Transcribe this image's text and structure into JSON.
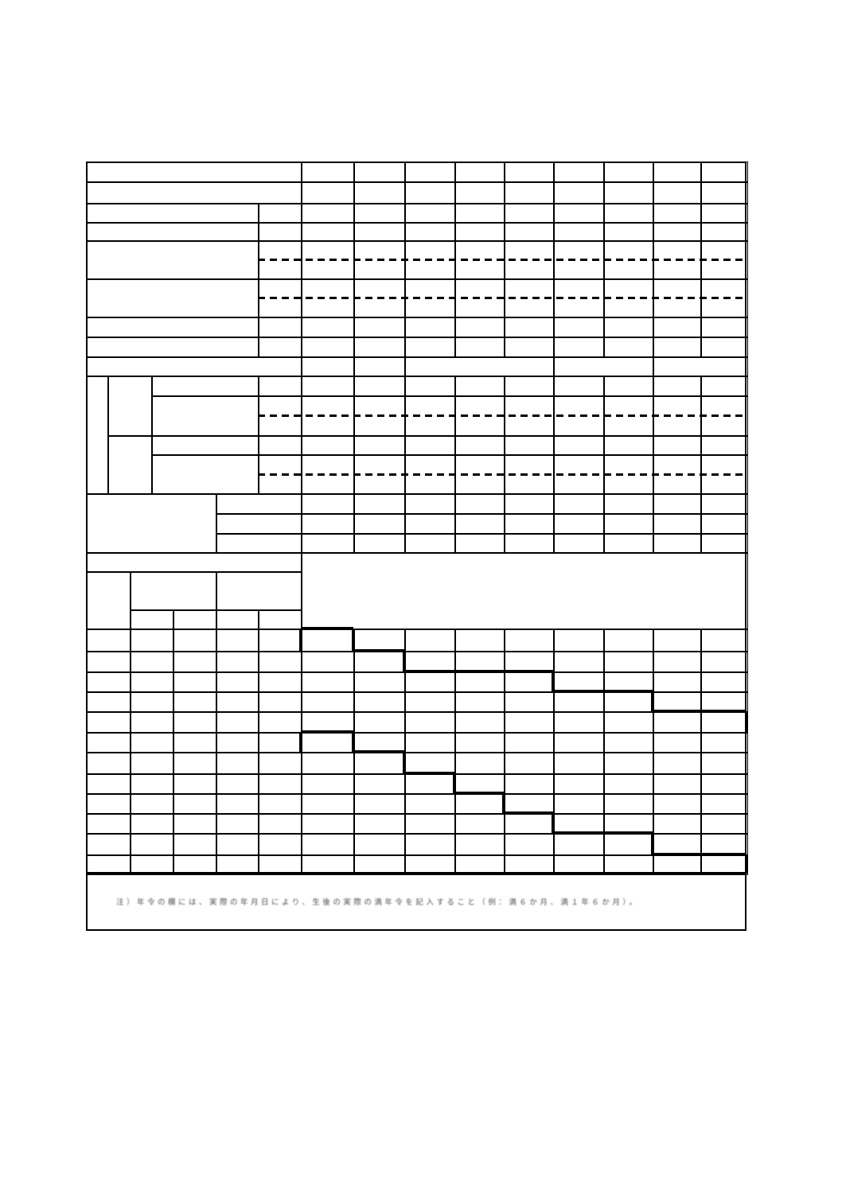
{
  "page": {
    "background_color": "#ffffff",
    "line_color": "#000000",
    "description": "blank scanned record form; every grid cell is empty"
  },
  "table": {
    "data_column_count": 9,
    "upper_rows": 9,
    "dashed_split_rows": 4,
    "grid_rows": 12,
    "staircase_lines": 2,
    "footnote": "注）年令の欄には、実際の年月日により、生後の実際の満年令を記入すること（例：満６か月、満１年６か月）。"
  }
}
